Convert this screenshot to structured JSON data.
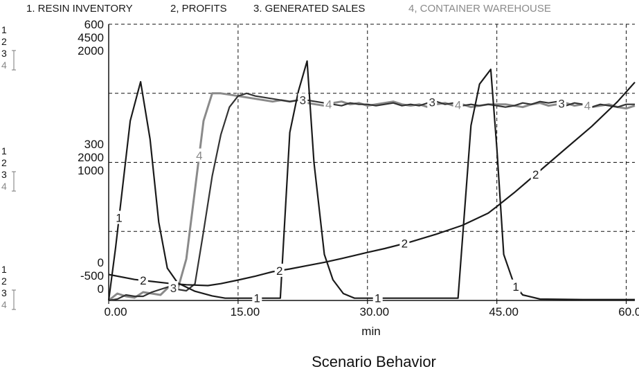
{
  "legend": [
    {
      "text": "1. RESIN INVENTORY",
      "color": "#1a1a1a"
    },
    {
      "text": "2, PROFITS",
      "color": "#1a1a1a"
    },
    {
      "text": "3. GENERATED SALES",
      "color": "#1a1a1a"
    },
    {
      "text": "4, CONTAINER WAREHOUSE",
      "color": "#8a8a8a"
    }
  ],
  "caption": "Scenario Behavior",
  "chart_data": {
    "type": "line",
    "title": "Scenario Behavior",
    "xlabel": "min",
    "xlim": [
      0,
      61
    ],
    "x_ticks": [
      "0.00",
      "15.00",
      "30.00",
      "45.00",
      "60.00"
    ],
    "grid": true,
    "legend_position": "top",
    "y_scales": [
      {
        "series_index": "1",
        "top": "600",
        "mid": "300",
        "bottom": "0",
        "range": [
          0,
          600
        ]
      },
      {
        "series_index": "2",
        "top": "4500",
        "mid": "2000",
        "bottom": "-500",
        "range": [
          -500,
          4500
        ]
      },
      {
        "series_index": "3",
        "top": "2000",
        "mid": "1000",
        "bottom": "0",
        "range": [
          0,
          2000
        ]
      },
      {
        "series_index": "4",
        "top": "",
        "mid": "",
        "bottom": "",
        "range": [
          0,
          2000
        ]
      }
    ],
    "series": [
      {
        "name": "RESIN INVENTORY",
        "label": "1",
        "color": "#1a1a1a",
        "scale": 0,
        "x": [
          0,
          0.8,
          2.5,
          3.7,
          4.8,
          5.8,
          6.8,
          8,
          10,
          12,
          13.5,
          15.5,
          17,
          18,
          19.5,
          19.9,
          21,
          22,
          23,
          23.8,
          25,
          26,
          27.2,
          28.5,
          29.3,
          31,
          36,
          40,
          40.5,
          42,
          43,
          44.3,
          45,
          45.8,
          47,
          48,
          50,
          55,
          61
        ],
        "y": [
          0,
          115,
          390,
          475,
          350,
          170,
          70,
          38,
          20,
          10,
          5,
          5,
          5,
          5,
          5,
          5,
          365,
          455,
          520,
          300,
          100,
          45,
          15,
          5,
          5,
          5,
          5,
          5,
          5,
          380,
          470,
          502,
          330,
          100,
          35,
          12,
          3,
          2,
          2
        ],
        "label_x": [
          1.2,
          17.2,
          31.2,
          47.2
        ]
      },
      {
        "name": "PROFITS",
        "label": "2",
        "color": "#1a1a1a",
        "scale": 1,
        "x": [
          0,
          3,
          5,
          7,
          9,
          11.5,
          13,
          15,
          17,
          19,
          21,
          23,
          25,
          27,
          30,
          32,
          35,
          38,
          41,
          44,
          45,
          47,
          50,
          53,
          56,
          59,
          61
        ],
        "y": [
          -30,
          -120,
          -155,
          -190,
          -215,
          -230,
          -195,
          -130,
          -60,
          20,
          70,
          130,
          190,
          260,
          370,
          440,
          560,
          700,
          860,
          1080,
          1200,
          1450,
          1850,
          2250,
          2650,
          3100,
          3450
        ],
        "label_x": [
          4,
          19.8,
          34.3,
          49.5
        ]
      },
      {
        "name": "GENERATED SALES",
        "label": "3",
        "color": "#333333",
        "scale": 2,
        "x": [
          0,
          1,
          2,
          3,
          4,
          5,
          6,
          7,
          8,
          9,
          10,
          11,
          12,
          13,
          14,
          15,
          16,
          17,
          18,
          19,
          20,
          21,
          22,
          23,
          24,
          25,
          26,
          27,
          28,
          29,
          30,
          31,
          32,
          33,
          34,
          35,
          36,
          37,
          38,
          39,
          40,
          41,
          42,
          43,
          44,
          45,
          46,
          47,
          48,
          49,
          50,
          51,
          52,
          53,
          54,
          55,
          56,
          57,
          58,
          59,
          60,
          61
        ],
        "y": [
          0,
          10,
          40,
          30,
          30,
          60,
          80,
          100,
          80,
          70,
          120,
          500,
          900,
          1200,
          1400,
          1480,
          1500,
          1480,
          1470,
          1460,
          1450,
          1440,
          1450,
          1450,
          1440,
          1430,
          1420,
          1410,
          1430,
          1420,
          1420,
          1410,
          1420,
          1430,
          1410,
          1420,
          1410,
          1430,
          1440,
          1420,
          1430,
          1410,
          1420,
          1410,
          1420,
          1410,
          1400,
          1410,
          1430,
          1420,
          1440,
          1430,
          1440,
          1410,
          1430,
          1420,
          1400,
          1420,
          1410,
          1400,
          1420,
          1420
        ],
        "label_x": [
          7.5,
          22.5,
          37.5,
          52.5
        ]
      },
      {
        "name": "CONTAINER WAREHOUSE",
        "label": "4",
        "color": "#8a8a8a",
        "scale": 3,
        "x": [
          0,
          1,
          2,
          3,
          4,
          5,
          6,
          7,
          8,
          9,
          10,
          11,
          12,
          13,
          14,
          15,
          16,
          17,
          18,
          19,
          20,
          21,
          22,
          23,
          24,
          25,
          26,
          27,
          28,
          29,
          30,
          31,
          32,
          33,
          34,
          35,
          36,
          37,
          38,
          39,
          40,
          41,
          42,
          43,
          44,
          45,
          46,
          47,
          48,
          49,
          50,
          51,
          52,
          53,
          54,
          55,
          56,
          57,
          58,
          59,
          60,
          61
        ],
        "y": [
          0,
          50,
          30,
          20,
          60,
          50,
          40,
          100,
          80,
          300,
          800,
          1300,
          1500,
          1500,
          1490,
          1480,
          1470,
          1460,
          1450,
          1440,
          1450,
          1440,
          1450,
          1430,
          1420,
          1410,
          1430,
          1440,
          1420,
          1430,
          1410,
          1420,
          1430,
          1440,
          1420,
          1410,
          1420,
          1400,
          1420,
          1430,
          1410,
          1420,
          1400,
          1410,
          1420,
          1420,
          1420,
          1410,
          1400,
          1420,
          1430,
          1410,
          1420,
          1430,
          1410,
          1420,
          1400,
          1410,
          1420,
          1400,
          1390,
          1410
        ],
        "label_x": [
          10.5,
          25.5,
          40.5,
          55.5
        ]
      }
    ]
  }
}
